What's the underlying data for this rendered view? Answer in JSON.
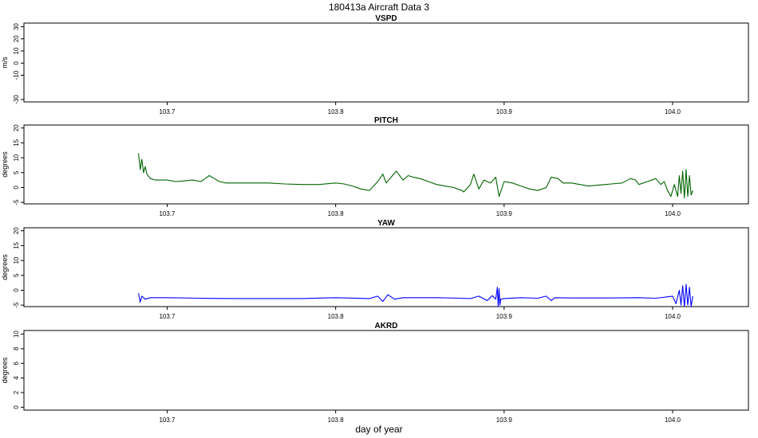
{
  "figure": {
    "title": "180413a   Aircraft Data 3",
    "xlabel": "day of year"
  },
  "chart_data": [
    {
      "type": "line",
      "title": "VSPD",
      "ylabel": "m/s",
      "ylim": [
        -32,
        33
      ],
      "yticks": [
        -30,
        -10,
        0,
        10,
        20,
        30
      ],
      "xlim": [
        103.615,
        104.045
      ],
      "xticks": [
        103.7,
        103.8,
        103.9,
        104.0
      ],
      "xtick_labels": [
        "103.7",
        "103.8",
        "103.9",
        "104.0"
      ],
      "color": "#006400",
      "series": []
    },
    {
      "type": "line",
      "title": "PITCH",
      "ylabel": "degrees",
      "ylim": [
        -5.5,
        21
      ],
      "yticks": [
        -5,
        0,
        5,
        10,
        15,
        20
      ],
      "xlim": [
        103.615,
        104.045
      ],
      "xticks": [
        103.7,
        103.8,
        103.9,
        104.0
      ],
      "xtick_labels": [
        "103.7",
        "103.8",
        "103.9",
        "104.0"
      ],
      "color": "#006400",
      "series": [
        {
          "x": [
            103.683,
            103.684,
            103.685,
            103.686,
            103.687,
            103.688,
            103.69,
            103.693,
            103.697,
            103.7,
            103.705,
            103.71,
            103.715,
            103.72,
            103.725,
            103.728,
            103.731,
            103.735,
            103.74,
            103.75,
            103.76,
            103.77,
            103.78,
            103.79,
            103.8,
            103.805,
            103.81,
            103.815,
            103.82,
            103.825,
            103.828,
            103.83,
            103.833,
            103.836,
            103.84,
            103.843,
            103.846,
            103.85,
            103.855,
            103.86,
            103.865,
            103.87,
            103.875,
            103.876,
            103.88,
            103.882,
            103.885,
            103.888,
            103.892,
            103.895,
            103.897,
            103.9,
            103.905,
            103.91,
            103.915,
            103.92,
            103.925,
            103.928,
            103.932,
            103.935,
            103.94,
            103.945,
            103.95,
            103.96,
            103.97,
            103.975,
            103.978,
            103.98,
            103.985,
            103.99,
            103.993,
            103.995,
            103.997,
            103.999,
            104.001,
            104.003,
            104.004,
            104.005,
            104.006,
            104.007,
            104.008,
            104.009,
            104.01,
            104.011,
            104.012
          ],
          "y": [
            11.5,
            6.0,
            9.5,
            5.0,
            7.0,
            4.5,
            3.0,
            2.5,
            2.5,
            2.5,
            2.0,
            2.2,
            2.5,
            2.0,
            4.0,
            3.0,
            2.0,
            1.5,
            1.5,
            1.5,
            1.5,
            1.2,
            1.0,
            1.0,
            1.5,
            1.2,
            0.5,
            -0.5,
            -1.0,
            2.0,
            4.5,
            1.5,
            3.5,
            5.5,
            2.5,
            4.0,
            3.5,
            3.0,
            2.0,
            1.0,
            0.5,
            0.0,
            -1.0,
            -1.5,
            1.0,
            4.5,
            -0.5,
            2.5,
            1.5,
            3.5,
            -3.0,
            2.0,
            1.5,
            0.5,
            -0.5,
            -1.0,
            0.0,
            3.5,
            3.0,
            1.5,
            1.5,
            1.0,
            0.5,
            1.0,
            1.5,
            3.0,
            2.5,
            1.0,
            2.0,
            3.0,
            1.0,
            2.0,
            -1.0,
            -3.0,
            1.0,
            -3.0,
            4.0,
            -2.0,
            5.5,
            -3.5,
            6.0,
            -3.0,
            4.0,
            -2.5,
            -1.0
          ]
        }
      ]
    },
    {
      "type": "line",
      "title": "YAW",
      "ylabel": "degrees",
      "ylim": [
        -5.5,
        21
      ],
      "yticks": [
        -5,
        0,
        5,
        10,
        15,
        20
      ],
      "xlim": [
        103.615,
        104.045
      ],
      "xticks": [
        103.7,
        103.8,
        103.9,
        104.0
      ],
      "xtick_labels": [
        "103.7",
        "103.8",
        "103.9",
        "104.0"
      ],
      "color": "#0000ff",
      "series": [
        {
          "x": [
            103.683,
            103.684,
            103.685,
            103.687,
            103.69,
            103.7,
            103.72,
            103.74,
            103.76,
            103.78,
            103.8,
            103.82,
            103.825,
            103.828,
            103.831,
            103.835,
            103.84,
            103.86,
            103.875,
            103.88,
            103.885,
            103.89,
            103.893,
            103.895,
            103.896,
            103.8965,
            103.897,
            103.8975,
            103.898,
            103.9,
            103.91,
            103.92,
            103.925,
            103.928,
            103.93,
            103.94,
            103.96,
            103.98,
            103.99,
            104.0,
            104.002,
            104.004,
            104.005,
            104.006,
            104.007,
            104.008,
            104.009,
            104.01,
            104.011,
            104.012
          ],
          "y": [
            -1.0,
            -4.0,
            -2.0,
            -3.0,
            -2.5,
            -2.5,
            -2.7,
            -2.8,
            -2.8,
            -2.8,
            -2.5,
            -2.8,
            -2.0,
            -3.8,
            -1.5,
            -3.0,
            -2.5,
            -2.5,
            -2.7,
            -2.8,
            -2.0,
            -3.5,
            -1.8,
            -3.0,
            1.0,
            -5.5,
            0.5,
            -5.0,
            -3.0,
            -2.8,
            -2.5,
            -2.7,
            -2.0,
            -3.5,
            -2.5,
            -2.6,
            -2.6,
            -2.5,
            -2.7,
            -2.0,
            -4.5,
            0.0,
            -5.0,
            1.5,
            -5.5,
            2.0,
            -5.0,
            1.0,
            -5.5,
            -2.0
          ]
        }
      ]
    },
    {
      "type": "line",
      "title": "AKRD",
      "ylabel": "degrees",
      "ylim": [
        -0.4,
        10.5
      ],
      "yticks": [
        0,
        2,
        4,
        6,
        8,
        10
      ],
      "xlim": [
        103.615,
        104.045
      ],
      "xticks": [
        103.7,
        103.8,
        103.9,
        104.0
      ],
      "xtick_labels": [
        "103.7",
        "103.8",
        "103.9",
        "104.0"
      ],
      "color": "#006400",
      "series": []
    }
  ]
}
